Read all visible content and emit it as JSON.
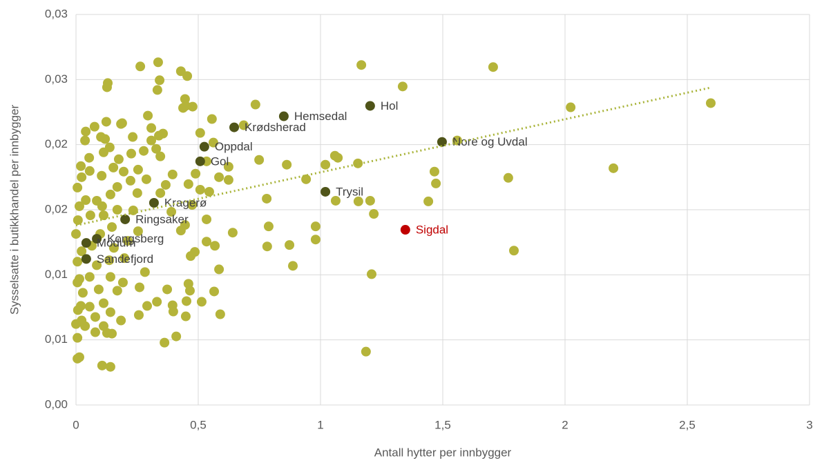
{
  "chart_data": {
    "type": "scatter",
    "xlabel": "Antall hytter per innbygger",
    "ylabel": "Sysselsatte i butikkhandel per innbygger",
    "xlim": [
      0,
      3
    ],
    "xticks": [
      0,
      {
        "value": 0.5,
        "label": "0,5"
      },
      1,
      {
        "value": 1.5,
        "label": "1,5"
      },
      2,
      {
        "value": 2.5,
        "label": "2,5"
      },
      3
    ],
    "ylim": [
      0,
      0.03
    ],
    "yticks": [
      {
        "value": 0,
        "label": "0,00"
      },
      {
        "value": 0.005,
        "label": "0,01"
      },
      {
        "value": 0.01,
        "label": "0,01"
      },
      {
        "value": 0.015,
        "label": "0,02"
      },
      {
        "value": 0.02,
        "label": "0,02"
      },
      {
        "value": 0.025,
        "label": "0,03"
      },
      {
        "value": 0.03,
        "label": "0,03"
      }
    ],
    "grid": true,
    "series": [
      {
        "color": "#b5b43a",
        "x": [
          1.167,
          1.336,
          1.706,
          2.596,
          2.023,
          2.198,
          1.559,
          1.466,
          1.472,
          1.768,
          1.441,
          1.791,
          1.203,
          1.155,
          1.218,
          1.209,
          1.186,
          1.059,
          1.071,
          1.02,
          1.153,
          1.062,
          0.941,
          0.862,
          0.98,
          0.98,
          0.873,
          0.887,
          0.788,
          0.782,
          0.78,
          0.749,
          0.734,
          0.686,
          0.641,
          0.624,
          0.624,
          0.556,
          0.562,
          0.585,
          0.534,
          0.545,
          0.534,
          0.568,
          0.585,
          0.59,
          0.565,
          0.514,
          0.452,
          0.486,
          0.534,
          0.508,
          0.477,
          0.508,
          0.489,
          0.46,
          0.475,
          0.429,
          0.438,
          0.455,
          0.429,
          0.446,
          0.449,
          0.446,
          0.469,
          0.46,
          0.466,
          0.449,
          0.395,
          0.398,
          0.41,
          0.362,
          0.373,
          0.331,
          0.291,
          0.257,
          0.26,
          0.282,
          0.336,
          0.342,
          0.263,
          0.333,
          0.356,
          0.328,
          0.345,
          0.395,
          0.367,
          0.39,
          0.345,
          0.294,
          0.308,
          0.308,
          0.288,
          0.251,
          0.184,
          0.226,
          0.13,
          0.127,
          0.076,
          0.189,
          0.119,
          0.138,
          0.113,
          0.02,
          0.056,
          0.023,
          0.105,
          0.153,
          0.195,
          0.223,
          0.169,
          0.141,
          0.006,
          0.04,
          0.107,
          0.085,
          0.014,
          0.008,
          0.059,
          0.113,
          0.169,
          0.234,
          0.147,
          0.099,
          0.0,
          0.065,
          0.023,
          0.155,
          0.212,
          0.254,
          0.006,
          0.085,
          0.136,
          0.198,
          0.014,
          0.056,
          0.141,
          0.192,
          0.006,
          0.093,
          0.028,
          0.169,
          0.113,
          0.141,
          0.056,
          0.008,
          0.079,
          0.023,
          0.184,
          0.0,
          0.037,
          0.113,
          0.079,
          0.006,
          0.014,
          0.107,
          0.141,
          0.006,
          0.02,
          0.127,
          0.147,
          0.054,
          0.102,
          0.232,
          0.277,
          0.339,
          0.037,
          0.124,
          0.04,
          0.175,
          0.254
        ],
        "values": [
          0.02612,
          0.02447,
          0.02596,
          0.02319,
          0.02287,
          0.01819,
          0.02032,
          0.01793,
          0.01702,
          0.01745,
          0.01564,
          0.01186,
          0.01569,
          0.01564,
          0.01468,
          0.01005,
          0.0041,
          0.01915,
          0.01899,
          0.01846,
          0.01856,
          0.01569,
          0.01734,
          0.01846,
          0.01372,
          0.01271,
          0.01229,
          0.01069,
          0.01372,
          0.01218,
          0.01585,
          0.01883,
          0.02308,
          0.02149,
          0.01324,
          0.0183,
          0.01729,
          0.02197,
          0.02016,
          0.0175,
          0.01872,
          0.01638,
          0.01255,
          0.01223,
          0.01042,
          0.00697,
          0.00872,
          0.00793,
          0.00798,
          0.01176,
          0.01426,
          0.01654,
          0.02292,
          0.0209,
          0.01777,
          0.01697,
          0.01537,
          0.0134,
          0.02282,
          0.02527,
          0.02564,
          0.02351,
          0.02298,
          0.01383,
          0.01144,
          0.00931,
          0.00878,
          0.00681,
          0.00766,
          0.00718,
          0.00527,
          0.00479,
          0.00888,
          0.00793,
          0.00761,
          0.00691,
          0.00904,
          0.01021,
          0.02633,
          0.02495,
          0.02601,
          0.0242,
          0.02085,
          0.01968,
          0.0191,
          0.01771,
          0.01691,
          0.01484,
          0.01628,
          0.02223,
          0.02128,
          0.02032,
          0.01734,
          0.01628,
          0.02159,
          0.01931,
          0.02473,
          0.02441,
          0.02138,
          0.02165,
          0.02043,
          0.01979,
          0.01941,
          0.01835,
          0.01798,
          0.0175,
          0.01761,
          0.01824,
          0.01793,
          0.01723,
          0.01675,
          0.01617,
          0.0167,
          0.01574,
          0.01527,
          0.01569,
          0.01527,
          0.0142,
          0.01457,
          0.01457,
          0.015,
          0.01495,
          0.01367,
          0.01314,
          0.01314,
          0.01223,
          0.01181,
          0.01207,
          0.01261,
          0.01335,
          0.01101,
          0.01074,
          0.01112,
          0.01128,
          0.00968,
          0.00984,
          0.00984,
          0.00941,
          0.00941,
          0.00888,
          0.00862,
          0.00878,
          0.00782,
          0.00713,
          0.00755,
          0.00729,
          0.00676,
          0.00649,
          0.00649,
          0.00622,
          0.00606,
          0.00606,
          0.00559,
          0.00516,
          0.00367,
          0.00303,
          0.00293,
          0.00356,
          0.00761,
          0.00553,
          0.00548,
          0.01899,
          0.02059,
          0.02059,
          0.01952,
          0.02069,
          0.02032,
          0.02176,
          0.02101,
          0.01888,
          0.01808
        ]
      },
      {
        "color": "#4f5419",
        "label_color": "#404040",
        "labels": [
          "Hol",
          "Hemsedal",
          "Krødsherad",
          "Oppdal",
          "Gol",
          "Nore og Uvdal",
          "Trysil",
          "Kragerø",
          "Ringsaker",
          "Kongsberg",
          "Modum",
          "Sandefjord"
        ],
        "x": [
          1.203,
          0.85,
          0.647,
          0.525,
          0.508,
          1.497,
          1.02,
          0.319,
          0.201,
          0.085,
          0.042,
          0.042
        ],
        "values": [
          0.02298,
          0.02218,
          0.02133,
          0.01984,
          0.01872,
          0.02021,
          0.01638,
          0.01553,
          0.01426,
          0.01277,
          0.01245,
          0.01122
        ]
      },
      {
        "color": "#c00000",
        "label_color": "#c00000",
        "labels": [
          "Sigdal"
        ],
        "x": [
          1.347
        ],
        "values": [
          0.01346
        ]
      }
    ],
    "trendline": {
      "color": "#a9b43a",
      "x": [
        0,
        2.6
      ],
      "values": [
        0.0138,
        0.0244
      ]
    }
  }
}
